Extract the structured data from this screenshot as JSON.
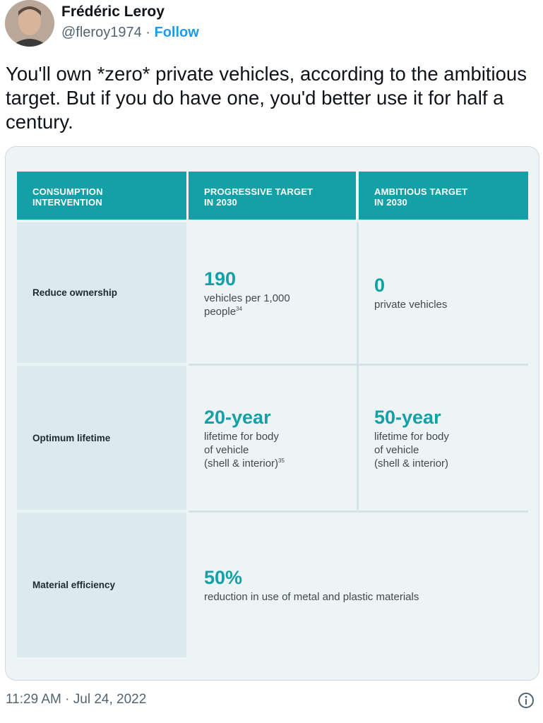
{
  "user": {
    "name": "Frédéric Leroy",
    "handle": "@fleroy1974",
    "separator": " · ",
    "follow_label": "Follow"
  },
  "tweet": {
    "text": "You'll own *zero* private vehicles, according to the ambitious target. But if you do have one, you'd better use it for half a century."
  },
  "table": {
    "headers": [
      {
        "line1": "CONSUMPTION",
        "line2": "INTERVENTION"
      },
      {
        "line1": "PROGRESSIVE TARGET",
        "line2": "IN 2030"
      },
      {
        "line1": "AMBITIOUS TARGET",
        "line2": "IN 2030"
      }
    ],
    "rows": [
      {
        "label": "Reduce ownership",
        "progressive": {
          "value": "190",
          "lines": [
            "vehicles per 1,000",
            "people"
          ],
          "ref": "34"
        },
        "ambitious": {
          "value": "0",
          "lines": [
            "private vehicles"
          ]
        }
      },
      {
        "label": "Optimum lifetime",
        "progressive": {
          "value": "20-year",
          "lines": [
            "lifetime for body",
            "of vehicle",
            "(shell & interior)"
          ],
          "ref": "35"
        },
        "ambitious": {
          "value": "50-year",
          "lines": [
            "lifetime for body",
            "of vehicle",
            "(shell & interior)"
          ]
        }
      },
      {
        "label": "Material efficiency",
        "combined": {
          "value": "50%",
          "lines": [
            "reduction in use of metal and plastic materials"
          ]
        }
      }
    ]
  },
  "footer": {
    "timestamp": "11:29 AM · Jul 24, 2022",
    "info_icon": "info-icon"
  },
  "colors": {
    "accent_teal": "#14a0a7",
    "label_cell_bg": "#dbeaef",
    "link_blue": "#1d9bf0"
  }
}
